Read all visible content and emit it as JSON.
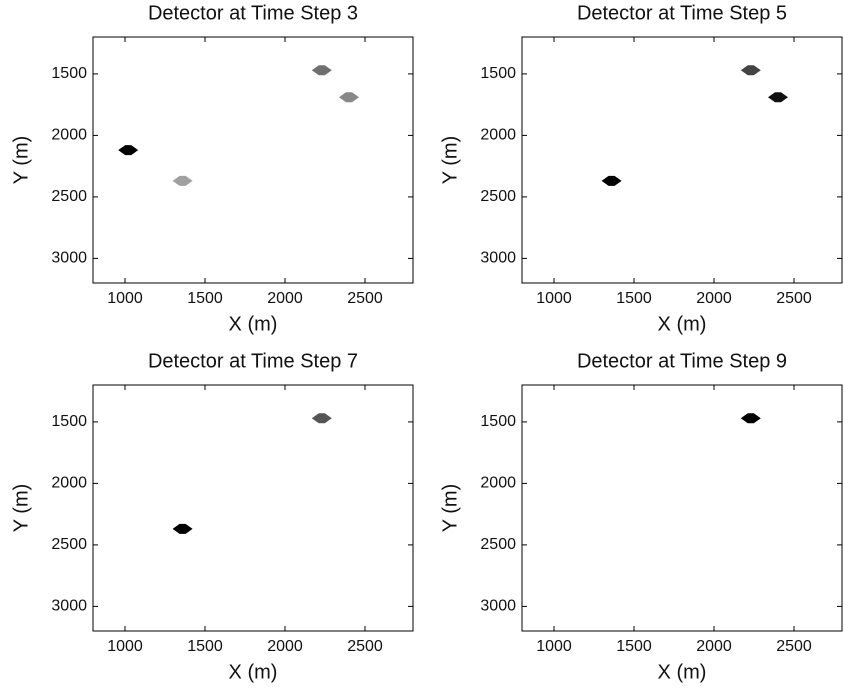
{
  "chart_data": [
    {
      "type": "scatter",
      "title": "Detector at Time Step 3",
      "xlabel": "X (m)",
      "ylabel": "Y (m)",
      "xlim": [
        800,
        2800
      ],
      "ylim": [
        3200,
        1200
      ],
      "xticks": [
        1000,
        1500,
        2000,
        2500
      ],
      "yticks": [
        1500,
        2000,
        2500,
        3000
      ],
      "x": [
        1020,
        1360,
        2230,
        2400
      ],
      "y": [
        2120,
        2370,
        1470,
        1690
      ],
      "colors": [
        "#000000",
        "#a0a0a0",
        "#707070",
        "#888888"
      ]
    },
    {
      "type": "scatter",
      "title": "Detector at Time Step 5",
      "xlabel": "X (m)",
      "ylabel": "Y (m)",
      "xlim": [
        800,
        2800
      ],
      "ylim": [
        3200,
        1200
      ],
      "xticks": [
        1000,
        1500,
        2000,
        2500
      ],
      "yticks": [
        1500,
        2000,
        2500,
        3000
      ],
      "x": [
        1360,
        2230,
        2400
      ],
      "y": [
        2370,
        1470,
        1690
      ],
      "colors": [
        "#000000",
        "#444444",
        "#111111"
      ]
    },
    {
      "type": "scatter",
      "title": "Detector at Time Step 7",
      "xlabel": "X (m)",
      "ylabel": "Y (m)",
      "xlim": [
        800,
        2800
      ],
      "ylim": [
        3200,
        1200
      ],
      "xticks": [
        1000,
        1500,
        2000,
        2500
      ],
      "yticks": [
        1500,
        2000,
        2500,
        3000
      ],
      "x": [
        1360,
        2230
      ],
      "y": [
        2370,
        1470
      ],
      "colors": [
        "#000000",
        "#555555"
      ]
    },
    {
      "type": "scatter",
      "title": "Detector at Time Step 9",
      "xlabel": "X (m)",
      "ylabel": "Y (m)",
      "xlim": [
        800,
        2800
      ],
      "ylim": [
        3200,
        1200
      ],
      "xticks": [
        1000,
        1500,
        2000,
        2500
      ],
      "yticks": [
        1500,
        2000,
        2500,
        3000
      ],
      "x": [
        2230
      ],
      "y": [
        1470
      ],
      "colors": [
        "#000000"
      ]
    }
  ]
}
